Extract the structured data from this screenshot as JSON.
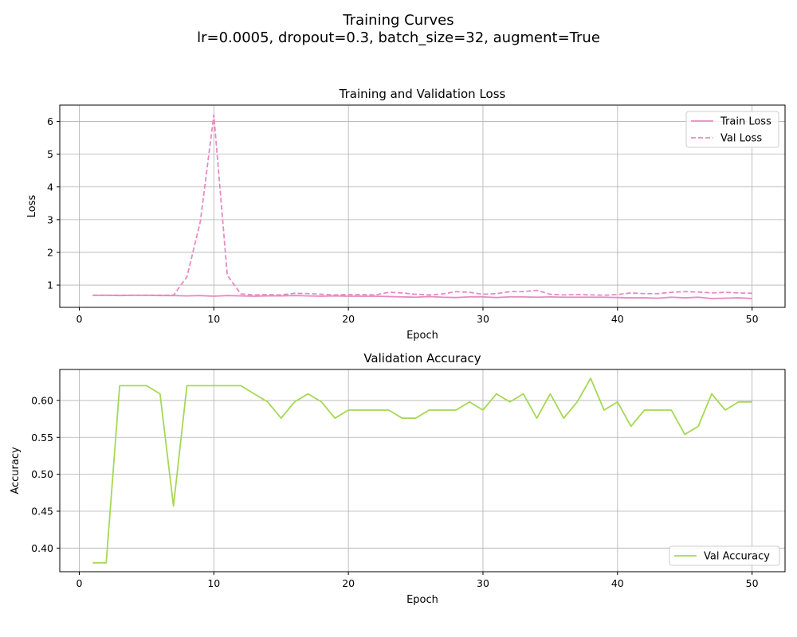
{
  "figure": {
    "suptitle_line1": "Training Curves",
    "suptitle_line2": "lr=0.0005, dropout=0.3, batch_size=32, augment=True"
  },
  "colors": {
    "loss": "#e78ac3",
    "accuracy": "#a6d854",
    "grid": "#b0b0b0",
    "axis": "#000000"
  },
  "chart_data": [
    {
      "type": "line",
      "title": "Training and Validation Loss",
      "xlabel": "Epoch",
      "ylabel": "Loss",
      "xlim": [
        -1.45,
        52.45
      ],
      "ylim": [
        0.32,
        6.5
      ],
      "xticks": [
        0,
        10,
        20,
        30,
        40,
        50
      ],
      "yticks": [
        1,
        2,
        3,
        4,
        5,
        6
      ],
      "grid": true,
      "legend_position": "upper right",
      "x": [
        1,
        2,
        3,
        4,
        5,
        6,
        7,
        8,
        9,
        10,
        11,
        12,
        13,
        14,
        15,
        16,
        17,
        18,
        19,
        20,
        21,
        22,
        23,
        24,
        25,
        26,
        27,
        28,
        29,
        30,
        31,
        32,
        33,
        34,
        35,
        36,
        37,
        38,
        39,
        40,
        41,
        42,
        43,
        44,
        45,
        46,
        47,
        48,
        49,
        50
      ],
      "series": [
        {
          "name": "Train Loss",
          "style": "solid",
          "values": [
            0.69,
            0.69,
            0.68,
            0.69,
            0.69,
            0.68,
            0.68,
            0.67,
            0.68,
            0.66,
            0.68,
            0.67,
            0.66,
            0.67,
            0.67,
            0.68,
            0.67,
            0.66,
            0.67,
            0.66,
            0.66,
            0.66,
            0.65,
            0.64,
            0.63,
            0.65,
            0.63,
            0.62,
            0.64,
            0.64,
            0.62,
            0.64,
            0.64,
            0.63,
            0.64,
            0.63,
            0.63,
            0.63,
            0.63,
            0.62,
            0.61,
            0.61,
            0.6,
            0.63,
            0.61,
            0.63,
            0.59,
            0.6,
            0.61,
            0.59
          ]
        },
        {
          "name": "Val Loss",
          "style": "dashed",
          "values": [
            0.69,
            0.69,
            0.69,
            0.69,
            0.69,
            0.69,
            0.69,
            1.25,
            2.95,
            6.2,
            1.3,
            0.73,
            0.7,
            0.71,
            0.7,
            0.75,
            0.74,
            0.72,
            0.7,
            0.71,
            0.71,
            0.7,
            0.78,
            0.76,
            0.72,
            0.7,
            0.73,
            0.8,
            0.78,
            0.72,
            0.74,
            0.8,
            0.8,
            0.84,
            0.72,
            0.7,
            0.71,
            0.7,
            0.69,
            0.71,
            0.76,
            0.74,
            0.74,
            0.78,
            0.8,
            0.79,
            0.76,
            0.78,
            0.76,
            0.75
          ]
        }
      ]
    },
    {
      "type": "line",
      "title": "Validation Accuracy",
      "xlabel": "Epoch",
      "ylabel": "Accuracy",
      "xlim": [
        -1.45,
        52.45
      ],
      "ylim": [
        0.368,
        0.642
      ],
      "xticks": [
        0,
        10,
        20,
        30,
        40,
        50
      ],
      "yticks": [
        0.4,
        0.45,
        0.5,
        0.55,
        0.6
      ],
      "ytick_decimals": 2,
      "grid": true,
      "legend_position": "lower right",
      "x": [
        1,
        2,
        3,
        4,
        5,
        6,
        7,
        8,
        9,
        10,
        11,
        12,
        13,
        14,
        15,
        16,
        17,
        18,
        19,
        20,
        21,
        22,
        23,
        24,
        25,
        26,
        27,
        28,
        29,
        30,
        31,
        32,
        33,
        34,
        35,
        36,
        37,
        38,
        39,
        40,
        41,
        42,
        43,
        44,
        45,
        46,
        47,
        48,
        49,
        50
      ],
      "series": [
        {
          "name": "Val Accuracy",
          "style": "solid",
          "values": [
            0.38,
            0.38,
            0.62,
            0.62,
            0.62,
            0.609,
            0.457,
            0.62,
            0.62,
            0.62,
            0.62,
            0.62,
            0.609,
            0.598,
            0.576,
            0.598,
            0.609,
            0.598,
            0.576,
            0.587,
            0.587,
            0.587,
            0.587,
            0.576,
            0.576,
            0.587,
            0.587,
            0.587,
            0.598,
            0.587,
            0.609,
            0.598,
            0.609,
            0.576,
            0.609,
            0.576,
            0.598,
            0.63,
            0.587,
            0.598,
            0.565,
            0.587,
            0.587,
            0.587,
            0.554,
            0.565,
            0.609,
            0.587,
            0.598,
            0.598
          ]
        }
      ]
    }
  ]
}
